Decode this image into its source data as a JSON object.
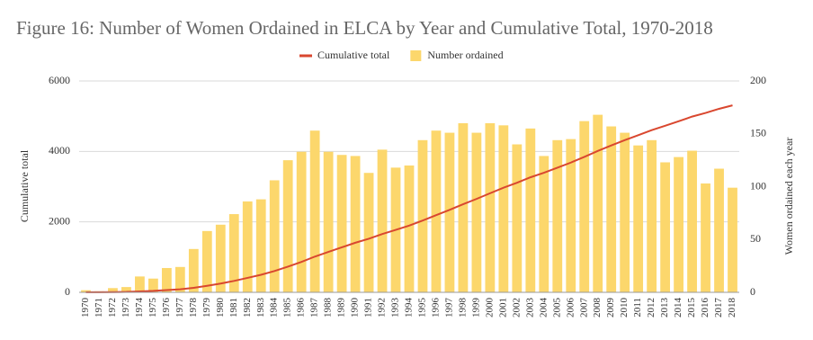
{
  "chart_data": {
    "type": "bar",
    "title": "Figure 16: Number of Women Ordained in ELCA by Year and Cumulative Total, 1970-2018",
    "y_label": "Cumulative total",
    "y2_label": "Women ordained each year",
    "categories": [
      "1970",
      "1971",
      "1972",
      "1973",
      "1974",
      "1975",
      "1976",
      "1977",
      "1978",
      "1979",
      "1980",
      "1981",
      "1982",
      "1983",
      "1984",
      "1985",
      "1986",
      "1987",
      "1988",
      "1989",
      "1990",
      "1991",
      "1992",
      "1993",
      "1994",
      "1995",
      "1996",
      "1997",
      "1998",
      "1999",
      "2000",
      "2001",
      "2002",
      "2003",
      "2004",
      "2005",
      "2006",
      "2007",
      "2008",
      "2009",
      "2010",
      "2011",
      "2012",
      "2013",
      "2014",
      "2015",
      "2016",
      "2017",
      "2018"
    ],
    "series": [
      {
        "name": "Cumulative total",
        "type": "line",
        "axis": "y",
        "color": "#d9472f",
        "values": [
          2,
          3,
          7,
          12,
          27,
          40,
          63,
          87,
          128,
          186,
          250,
          324,
          410,
          498,
          604,
          729,
          862,
          1015,
          1148,
          1278,
          1407,
          1520,
          1655,
          1773,
          1893,
          2037,
          2190,
          2341,
          2501,
          2652,
          2812,
          2970,
          3110,
          3265,
          3394,
          3538,
          3683,
          3845,
          4013,
          4170,
          4321,
          4460,
          4604,
          4727,
          4855,
          4989,
          5092,
          5209,
          5308
        ]
      },
      {
        "name": "Number ordained",
        "type": "bar",
        "axis": "y2",
        "color": "#fcd76c",
        "values": [
          2,
          1,
          4,
          5,
          15,
          13,
          23,
          24,
          41,
          58,
          64,
          74,
          86,
          88,
          106,
          125,
          133,
          153,
          133,
          130,
          129,
          113,
          135,
          118,
          120,
          144,
          153,
          151,
          160,
          151,
          160,
          158,
          140,
          155,
          129,
          144,
          145,
          162,
          168,
          157,
          151,
          139,
          144,
          123,
          128,
          134,
          103,
          117,
          99
        ]
      }
    ],
    "ylim": [
      0,
      6000
    ],
    "yticks": [
      0,
      2000,
      4000,
      6000
    ],
    "y2lim": [
      0,
      200
    ],
    "y2ticks": [
      0,
      50,
      100,
      150,
      200
    ],
    "grid": true,
    "legend": "top"
  }
}
